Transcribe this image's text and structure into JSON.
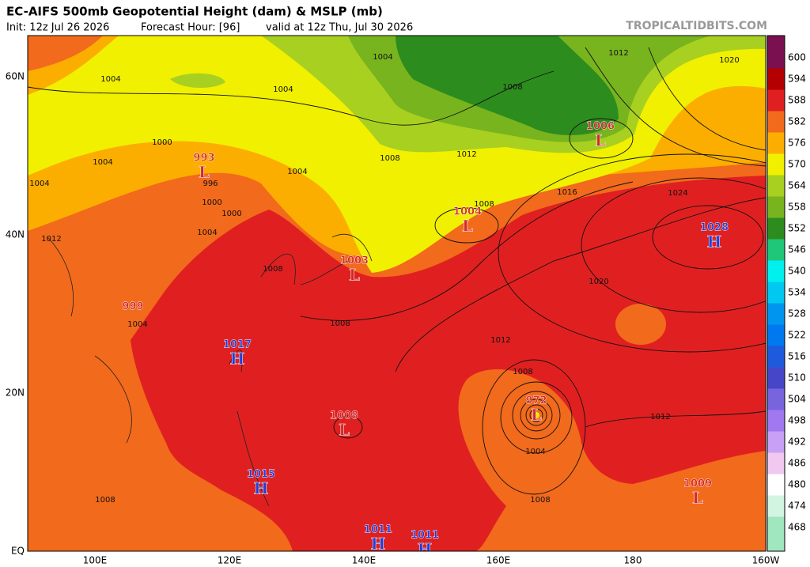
{
  "header": {
    "title": "EC-AIFS 500mb Geopotential Height (dam) & MSLP (mb)",
    "init": "Init: 12z Jul 26 2026",
    "forecast_hour": "Forecast Hour: [96]",
    "valid": "valid at 12z Thu, Jul 30 2026",
    "source": "TROPICALTIDBITS.COM"
  },
  "axes": {
    "latitudes": [
      "60N",
      "40N",
      "20N",
      "EQ"
    ],
    "longitudes": [
      "100E",
      "120E",
      "140E",
      "160E",
      "180",
      "160W"
    ]
  },
  "colorbar": {
    "levels": [
      600,
      594,
      588,
      582,
      576,
      570,
      564,
      558,
      552,
      546,
      540,
      534,
      528,
      522,
      516,
      510,
      504,
      498,
      492,
      486,
      480,
      474,
      468
    ],
    "colors": [
      "#7a1050",
      "#b40000",
      "#e02020",
      "#f26a1b",
      "#fcae00",
      "#f0f000",
      "#a8d020",
      "#78b41e",
      "#2d8c1e",
      "#1ec878",
      "#00f0f0",
      "#00c8f0",
      "#0096f0",
      "#0078f0",
      "#1e5adc",
      "#4646c8",
      "#7864dc",
      "#a078f0",
      "#c8a0f5",
      "#f0c8f0",
      "#ffffff",
      "#d2f5e1",
      "#a0e6be"
    ]
  },
  "pressure_centers": [
    {
      "letter": "L",
      "value": "993"
    },
    {
      "letter": "L",
      "value": "1006"
    },
    {
      "letter": "L",
      "value": "1004"
    },
    {
      "letter": "L",
      "value": "1003"
    },
    {
      "value": "999"
    },
    {
      "letter": "H",
      "value": "1017"
    },
    {
      "letter": "L",
      "value": "1008"
    },
    {
      "letter": "L",
      "value": "972"
    },
    {
      "letter": "H",
      "value": "1015"
    },
    {
      "letter": "H",
      "value": "1011"
    },
    {
      "letter": "H",
      "value": "1011"
    },
    {
      "letter": "H",
      "value": "1028"
    },
    {
      "letter": "L",
      "value": "1009"
    }
  ],
  "isobar_labels": [
    "1004",
    "1012",
    "1020",
    "1004",
    "1004",
    "1008",
    "1000",
    "1004",
    "1008",
    "1012",
    "996",
    "1004",
    "1000",
    "1008",
    "1016",
    "1024",
    "1000",
    "1004",
    "1012",
    "1020",
    "1008",
    "1012",
    "1008",
    "1012",
    "1004",
    "1008",
    "1008",
    "1004",
    "1008",
    "1004"
  ]
}
